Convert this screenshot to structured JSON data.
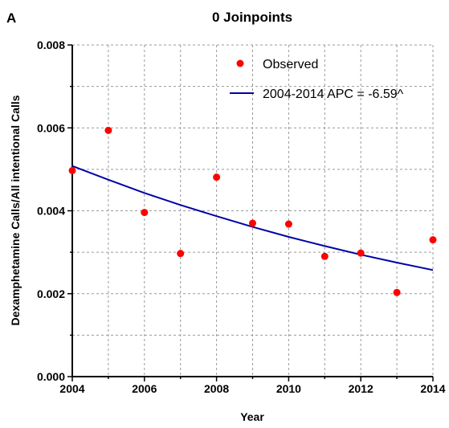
{
  "panel_label": "A",
  "chart_data": {
    "type": "scatter",
    "title": "0 Joinpoints",
    "xlabel": "Year",
    "ylabel": "Dexamphetamine Calls/All intentional Calls",
    "xlim": [
      2004,
      2014
    ],
    "ylim": [
      0,
      0.008
    ],
    "x_ticks": [
      "2004",
      "2006",
      "2008",
      "2010",
      "2012",
      "2014"
    ],
    "y_ticks": [
      "0.000",
      "0.002",
      "0.004",
      "0.006",
      "0.008"
    ],
    "grid": true,
    "legend_position": "top-right",
    "series": [
      {
        "name": "Observed",
        "kind": "points",
        "color": "#ff0000",
        "x": [
          2004,
          2005,
          2006,
          2007,
          2008,
          2009,
          2010,
          2011,
          2012,
          2013,
          2014
        ],
        "y": [
          0.00497,
          0.00594,
          0.00396,
          0.00297,
          0.00481,
          0.0037,
          0.00368,
          0.0029,
          0.00298,
          0.00203,
          0.0033
        ]
      },
      {
        "name": "2004-2014 APC = -6.59^",
        "kind": "line",
        "color": "#0000aa",
        "x": [
          2004,
          2005,
          2006,
          2007,
          2008,
          2009,
          2010,
          2011,
          2012,
          2013,
          2014
        ],
        "y": [
          0.00508,
          0.00475,
          0.00443,
          0.00414,
          0.00387,
          0.00361,
          0.00337,
          0.00315,
          0.00294,
          0.00275,
          0.00257
        ]
      }
    ]
  }
}
